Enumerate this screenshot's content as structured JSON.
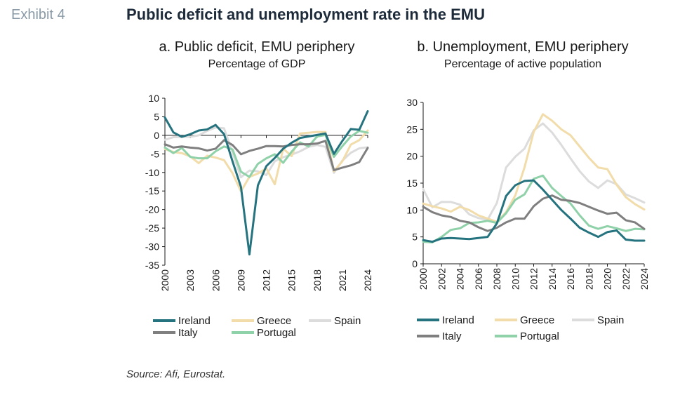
{
  "header": {
    "exhibit": "Exhibit 4",
    "title": "Public deficit and unemployment rate in the EMU"
  },
  "source": "Source: Afi, Eurostat.",
  "chart_data": [
    {
      "type": "line",
      "title": "a. Public deficit, EMU periphery",
      "subtitle": "Percentage of GDP",
      "xlabel": "",
      "ylabel": "",
      "xlim": [
        2000,
        2024
      ],
      "ylim": [
        -35,
        10
      ],
      "yticks": [
        10,
        5,
        0,
        -5,
        -10,
        -15,
        -20,
        -25,
        -30,
        -35
      ],
      "xticks": [
        "2000",
        "2003",
        "2006",
        "2009",
        "2012",
        "2015",
        "2018",
        "2021",
        "2024"
      ],
      "zero_line": true,
      "legend": "bottom",
      "x": [
        2000,
        2001,
        2002,
        2003,
        2004,
        2005,
        2006,
        2007,
        2008,
        2009,
        2010,
        2011,
        2012,
        2013,
        2014,
        2015,
        2016,
        2017,
        2018,
        2019,
        2020,
        2021,
        2022,
        2023,
        2024
      ],
      "series": [
        {
          "name": "Ireland",
          "color": "#25737f",
          "values": [
            4.8,
            0.8,
            -0.4,
            0.3,
            1.3,
            1.6,
            2.8,
            0.3,
            -7.0,
            -13.9,
            -32.1,
            -13.5,
            -8.3,
            -6.1,
            -3.6,
            -2.0,
            -0.7,
            -0.3,
            0.1,
            0.5,
            -5.0,
            -1.5,
            1.7,
            1.5,
            6.5
          ]
        },
        {
          "name": "Greece",
          "color": "#f1dcaa",
          "values": [
            -3.7,
            -4.5,
            -4.8,
            -5.7,
            -7.5,
            -5.5,
            -6.0,
            -6.7,
            -10.2,
            -15.1,
            -11.2,
            -10.3,
            -8.9,
            -13.2,
            -3.6,
            -5.6,
            0.5,
            0.7,
            0.9,
            0.9,
            -9.7,
            -7.0,
            -2.5,
            -1.3,
            1.3
          ]
        },
        {
          "name": "Spain",
          "color": "#dcdcdc",
          "values": [
            -1.2,
            -0.5,
            -0.4,
            -0.4,
            0.0,
            1.2,
            2.1,
            1.9,
            -4.6,
            -11.3,
            -9.5,
            -9.7,
            -10.7,
            -7.0,
            -5.9,
            -5.2,
            -4.3,
            -3.1,
            -2.6,
            -3.1,
            -10.1,
            -6.8,
            -4.7,
            -3.5,
            -3.2
          ]
        },
        {
          "name": "Italy",
          "color": "#7f7f7f",
          "values": [
            -2.4,
            -3.3,
            -3.0,
            -3.3,
            -3.5,
            -4.1,
            -3.6,
            -1.3,
            -2.6,
            -5.1,
            -4.2,
            -3.6,
            -2.9,
            -2.9,
            -3.0,
            -2.6,
            -2.4,
            -2.4,
            -2.2,
            -1.5,
            -9.4,
            -8.7,
            -8.1,
            -7.2,
            -3.4
          ]
        },
        {
          "name": "Portugal",
          "color": "#8fd1a8",
          "values": [
            -3.3,
            -4.8,
            -3.4,
            -5.8,
            -6.2,
            -6.2,
            -4.3,
            -3.0,
            -3.8,
            -9.8,
            -11.2,
            -7.7,
            -6.2,
            -5.1,
            -7.4,
            -4.4,
            -1.9,
            -3.0,
            -0.3,
            0.1,
            -5.8,
            -2.9,
            -0.3,
            1.2,
            0.7
          ]
        }
      ]
    },
    {
      "type": "line",
      "title": "b. Unemployment, EMU periphery",
      "subtitle": "Percentage of active population",
      "xlabel": "",
      "ylabel": "",
      "xlim": [
        2000,
        2024
      ],
      "ylim": [
        0,
        30
      ],
      "yticks": [
        30,
        25,
        20,
        15,
        10,
        5,
        0
      ],
      "xticks": [
        "2000",
        "2002",
        "2004",
        "2006",
        "2008",
        "2010",
        "2012",
        "2014",
        "2016",
        "2018",
        "2020",
        "2022",
        "2024"
      ],
      "legend": "bottom",
      "x": [
        2000,
        2001,
        2002,
        2003,
        2004,
        2005,
        2006,
        2007,
        2008,
        2009,
        2010,
        2011,
        2012,
        2013,
        2014,
        2015,
        2016,
        2017,
        2018,
        2019,
        2020,
        2021,
        2022,
        2023,
        2024
      ],
      "series": [
        {
          "name": "Ireland",
          "color": "#25737f",
          "values": [
            4.4,
            4.1,
            4.7,
            4.8,
            4.7,
            4.6,
            4.8,
            5.0,
            7.5,
            12.6,
            14.6,
            15.4,
            15.5,
            13.8,
            11.9,
            10.0,
            8.4,
            6.7,
            5.8,
            5.0,
            5.9,
            6.2,
            4.5,
            4.3,
            4.3
          ]
        },
        {
          "name": "Greece",
          "color": "#f1dcaa",
          "values": [
            11.2,
            10.7,
            10.3,
            9.7,
            10.6,
            10.0,
            9.0,
            8.4,
            7.8,
            9.6,
            12.7,
            17.9,
            24.5,
            27.8,
            26.6,
            25.0,
            23.9,
            21.8,
            19.7,
            17.9,
            17.6,
            14.7,
            12.4,
            11.1,
            10.1
          ]
        },
        {
          "name": "Spain",
          "color": "#dcdcdc",
          "values": [
            13.9,
            10.5,
            11.5,
            11.5,
            11.0,
            9.2,
            8.5,
            8.2,
            11.3,
            17.9,
            19.9,
            21.4,
            24.8,
            26.1,
            24.4,
            22.1,
            19.6,
            17.2,
            15.3,
            14.1,
            15.5,
            14.8,
            12.9,
            12.2,
            11.4
          ]
        },
        {
          "name": "Italy",
          "color": "#7f7f7f",
          "values": [
            10.6,
            9.6,
            9.0,
            8.7,
            8.0,
            7.7,
            6.8,
            6.1,
            6.7,
            7.7,
            8.4,
            8.4,
            10.7,
            12.1,
            12.7,
            11.9,
            11.7,
            11.3,
            10.6,
            9.9,
            9.3,
            9.5,
            8.1,
            7.7,
            6.5
          ]
        },
        {
          "name": "Portugal",
          "color": "#8fd1a8",
          "values": [
            4.1,
            4.0,
            5.0,
            6.3,
            6.6,
            7.6,
            7.7,
            8.0,
            7.6,
            9.4,
            11.9,
            12.9,
            15.8,
            16.4,
            14.1,
            12.6,
            11.2,
            9.0,
            7.1,
            6.5,
            7.0,
            6.6,
            6.1,
            6.5,
            6.4
          ]
        }
      ]
    }
  ],
  "legend": {
    "a": [
      "Ireland",
      "Greece",
      "Spain",
      "Italy",
      "Portugal"
    ],
    "b": [
      "Ireland",
      "Greece",
      "Spain",
      "Italy",
      "Portugal"
    ]
  }
}
